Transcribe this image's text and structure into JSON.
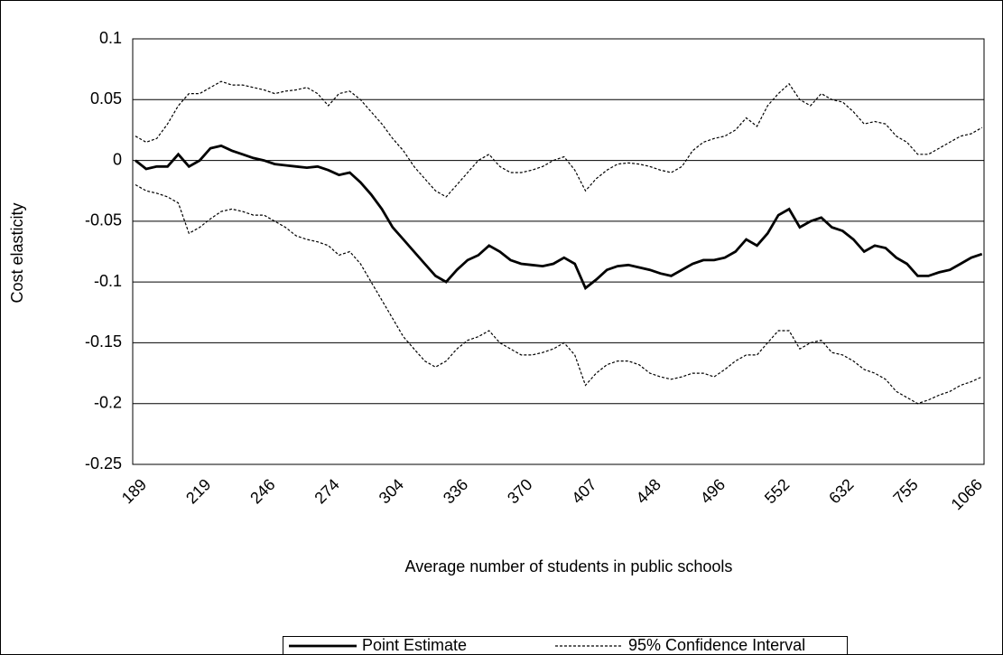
{
  "chart_data": {
    "type": "line",
    "x_label": "Average number of students in public schools",
    "y_label": "Cost elasticity",
    "categories": [
      "189",
      null,
      null,
      null,
      null,
      null,
      "219",
      null,
      null,
      null,
      null,
      null,
      "246",
      null,
      null,
      null,
      null,
      null,
      "274",
      null,
      null,
      null,
      null,
      null,
      "304",
      null,
      null,
      null,
      null,
      null,
      "336",
      null,
      null,
      null,
      null,
      null,
      "370",
      null,
      null,
      null,
      null,
      null,
      "407",
      null,
      null,
      null,
      null,
      null,
      "448",
      null,
      null,
      null,
      null,
      null,
      "496",
      null,
      null,
      null,
      null,
      null,
      "552",
      null,
      null,
      null,
      null,
      null,
      "632",
      null,
      null,
      null,
      null,
      null,
      "755",
      null,
      null,
      null,
      null,
      null,
      "1066",
      null
    ],
    "ylim": [
      -0.25,
      0.1
    ],
    "yticks": [
      -0.25,
      -0.2,
      -0.15,
      -0.1,
      -0.05,
      0,
      0.05,
      0.1
    ],
    "grid": true,
    "series": [
      {
        "name": "Point Estimate",
        "color": "#000000",
        "style": "solid",
        "values": [
          0,
          -0.007,
          -0.005,
          -0.005,
          0.005,
          -0.005,
          0,
          0.01,
          0.012,
          0.008,
          0.005,
          0.002,
          0,
          -0.003,
          -0.004,
          -0.005,
          -0.006,
          -0.005,
          -0.008,
          -0.012,
          -0.01,
          -0.018,
          -0.028,
          -0.04,
          -0.055,
          -0.065,
          -0.075,
          -0.085,
          -0.095,
          -0.1,
          -0.09,
          -0.082,
          -0.078,
          -0.07,
          -0.075,
          -0.082,
          -0.085,
          -0.086,
          -0.087,
          -0.085,
          -0.08,
          -0.085,
          -0.105,
          -0.098,
          -0.09,
          -0.087,
          -0.086,
          -0.088,
          -0.09,
          -0.093,
          -0.095,
          -0.09,
          -0.085,
          -0.082,
          -0.082,
          -0.08,
          -0.075,
          -0.065,
          -0.07,
          -0.06,
          -0.045,
          -0.04,
          -0.055,
          -0.05,
          -0.047,
          -0.055,
          -0.058,
          -0.065,
          -0.075,
          -0.07,
          -0.072,
          -0.08,
          -0.085,
          -0.095,
          -0.095,
          -0.092,
          -0.09,
          -0.085,
          -0.08,
          -0.077
        ]
      },
      {
        "name": "95% Confidence Interval",
        "color": "#000000",
        "style": "dashed",
        "values": [
          0.02,
          0.015,
          0.018,
          0.03,
          0.045,
          0.055,
          0.055,
          0.06,
          0.065,
          0.062,
          0.062,
          0.06,
          0.058,
          0.055,
          0.057,
          0.058,
          0.06,
          0.055,
          0.045,
          0.055,
          0.057,
          0.05,
          0.04,
          0.03,
          0.018,
          0.008,
          -0.005,
          -0.015,
          -0.025,
          -0.03,
          -0.02,
          -0.01,
          0,
          0.005,
          -0.005,
          -0.01,
          -0.01,
          -0.008,
          -0.005,
          0,
          0.003,
          -0.008,
          -0.025,
          -0.015,
          -0.008,
          -0.003,
          -0.002,
          -0.003,
          -0.005,
          -0.008,
          -0.01,
          -0.005,
          0.008,
          0.015,
          0.018,
          0.02,
          0.025,
          0.035,
          0.028,
          0.045,
          0.055,
          0.063,
          0.05,
          0.045,
          0.055,
          0.05,
          0.048,
          0.04,
          0.03,
          0.032,
          0.03,
          0.02,
          0.015,
          0.005,
          0.005,
          0.01,
          0.015,
          0.02,
          0.022,
          0.027
        ],
        "lower": [
          -0.02,
          -0.025,
          -0.027,
          -0.03,
          -0.035,
          -0.06,
          -0.055,
          -0.048,
          -0.042,
          -0.04,
          -0.042,
          -0.045,
          -0.045,
          -0.05,
          -0.055,
          -0.062,
          -0.065,
          -0.067,
          -0.07,
          -0.078,
          -0.075,
          -0.085,
          -0.1,
          -0.115,
          -0.13,
          -0.145,
          -0.155,
          -0.165,
          -0.17,
          -0.165,
          -0.155,
          -0.148,
          -0.145,
          -0.14,
          -0.15,
          -0.155,
          -0.16,
          -0.16,
          -0.158,
          -0.155,
          -0.15,
          -0.16,
          -0.185,
          -0.175,
          -0.168,
          -0.165,
          -0.165,
          -0.168,
          -0.175,
          -0.178,
          -0.18,
          -0.178,
          -0.175,
          -0.175,
          -0.178,
          -0.172,
          -0.165,
          -0.16,
          -0.16,
          -0.15,
          -0.14,
          -0.14,
          -0.155,
          -0.15,
          -0.148,
          -0.158,
          -0.16,
          -0.165,
          -0.172,
          -0.175,
          -0.18,
          -0.19,
          -0.195,
          -0.2,
          -0.197,
          -0.193,
          -0.19,
          -0.185,
          -0.182,
          -0.178
        ]
      }
    ]
  }
}
